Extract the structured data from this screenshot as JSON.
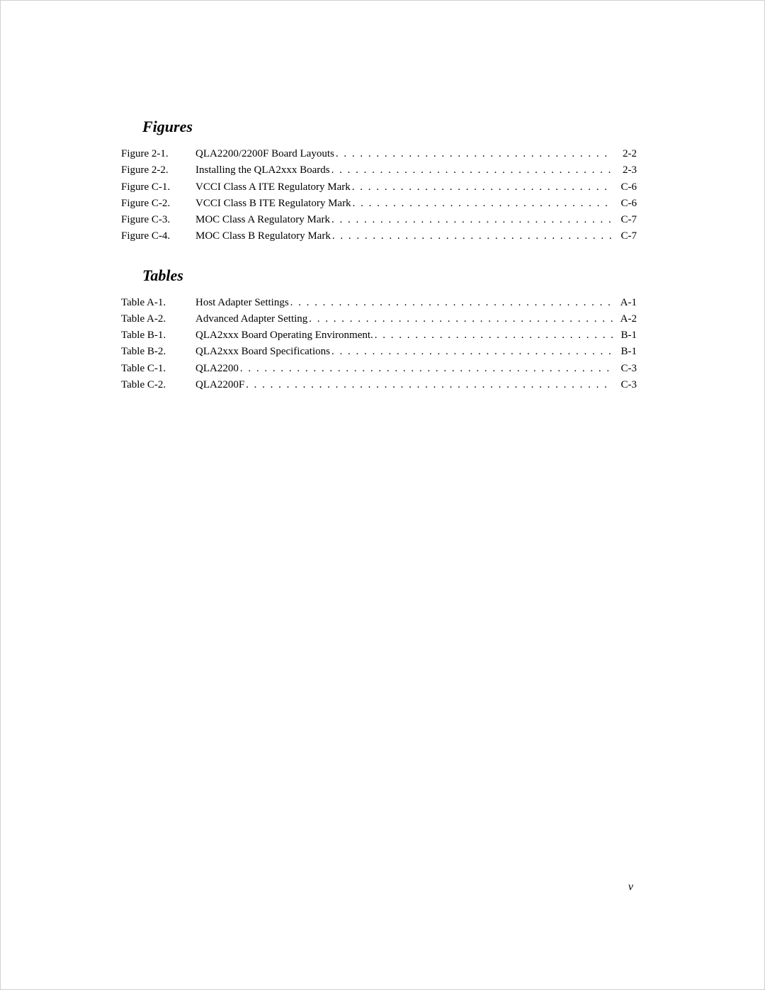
{
  "page_number": "v",
  "sections": [
    {
      "heading": "Figures",
      "entries": [
        {
          "label": "Figure 2-1.",
          "title": "QLA2200/2200F Board Layouts",
          "page": "2-2"
        },
        {
          "label": "Figure 2-2.",
          "title": "Installing the QLA2xxx Boards",
          "page": "2-3"
        },
        {
          "label": "Figure C-1.",
          "title": "VCCI Class A ITE Regulatory Mark",
          "page": "C-6"
        },
        {
          "label": "Figure C-2.",
          "title": "VCCI Class B ITE Regulatory Mark",
          "page": "C-6"
        },
        {
          "label": "Figure C-3.",
          "title": "MOC Class A Regulatory Mark",
          "page": "C-7"
        },
        {
          "label": "Figure C-4.",
          "title": "MOC Class B Regulatory Mark",
          "page": "C-7"
        }
      ]
    },
    {
      "heading": "Tables",
      "entries": [
        {
          "label": "Table A-1.",
          "title": "Host Adapter Settings",
          "page": "A-1"
        },
        {
          "label": "Table A-2.",
          "title": "Advanced Adapter Setting",
          "page": "A-2"
        },
        {
          "label": "Table B-1.",
          "title": "QLA2xxx Board Operating Environment.",
          "page": "B-1"
        },
        {
          "label": "Table B-2.",
          "title": "QLA2xxx Board Specifications",
          "page": "B-1"
        },
        {
          "label": "Table C-1.",
          "title": "QLA2200",
          "page": "C-3"
        },
        {
          "label": "Table C-2.",
          "title": "QLA2200F",
          "page": "C-3"
        }
      ]
    }
  ]
}
